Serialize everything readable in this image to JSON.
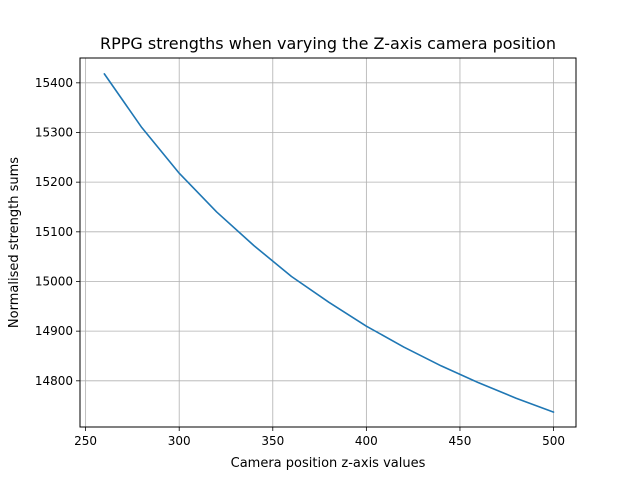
{
  "chart_data": {
    "type": "line",
    "title": "RPPG strengths when varying the Z-axis camera position",
    "xlabel": "Camera position z-axis values",
    "ylabel": "Normalised strength sums",
    "xlim": [
      247,
      512
    ],
    "ylim": [
      14707,
      15450
    ],
    "xticks": [
      250,
      300,
      350,
      400,
      450,
      500
    ],
    "yticks": [
      14800,
      14900,
      15000,
      15100,
      15200,
      15300,
      15400
    ],
    "grid": true,
    "series": [
      {
        "color": "#1f77b4",
        "x": [
          260,
          280,
          300,
          320,
          340,
          360,
          380,
          400,
          420,
          440,
          460,
          480,
          500
        ],
        "y": [
          15418,
          15310,
          15218,
          15140,
          15072,
          15010,
          14958,
          14910,
          14868,
          14830,
          14796,
          14765,
          14737
        ]
      }
    ]
  }
}
